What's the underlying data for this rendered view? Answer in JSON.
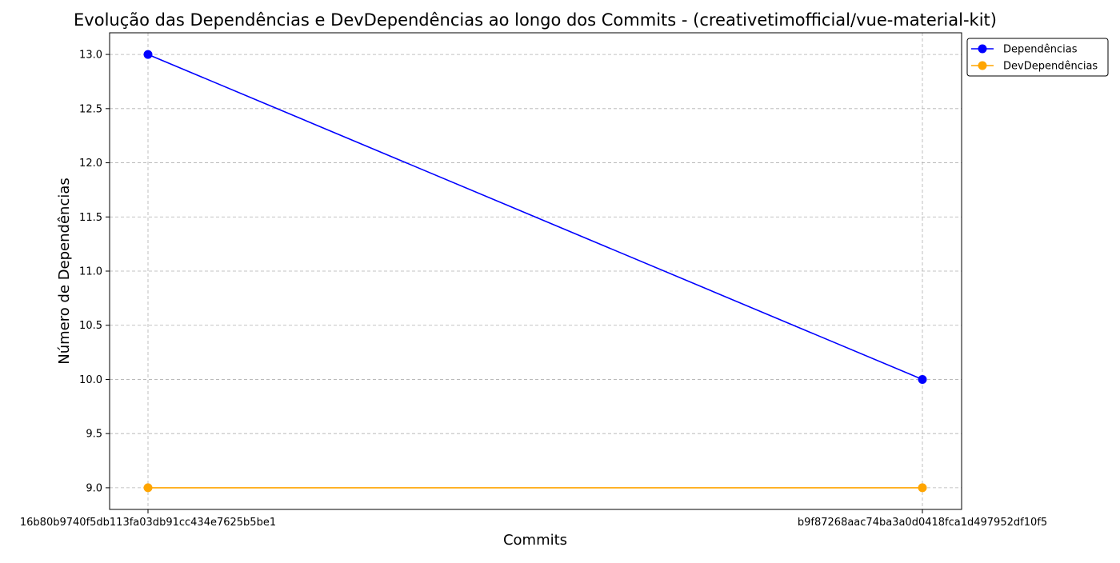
{
  "chart_data": {
    "type": "line",
    "title": "Evolução das Dependências e DevDependências ao longo dos Commits - (creativetimofficial/vue-material-kit)",
    "xlabel": "Commits",
    "ylabel": "Número de Dependências",
    "categories": [
      "16b80b9740f5db113fa03db91cc434e7625b5be1",
      "b9f87268aac74ba3a0d0418fca1d497952df10f5"
    ],
    "ylim": [
      8.8,
      13.2
    ],
    "yticks": [
      "9.0",
      "9.5",
      "10.0",
      "10.5",
      "11.0",
      "11.5",
      "12.0",
      "12.5",
      "13.0"
    ],
    "grid": true,
    "legend_position": "outside-top-right",
    "series": [
      {
        "name": "Dependências",
        "values": [
          13,
          10
        ],
        "color": "#0000ff"
      },
      {
        "name": "DevDependências",
        "values": [
          9,
          9
        ],
        "color": "#ffa500"
      }
    ]
  }
}
